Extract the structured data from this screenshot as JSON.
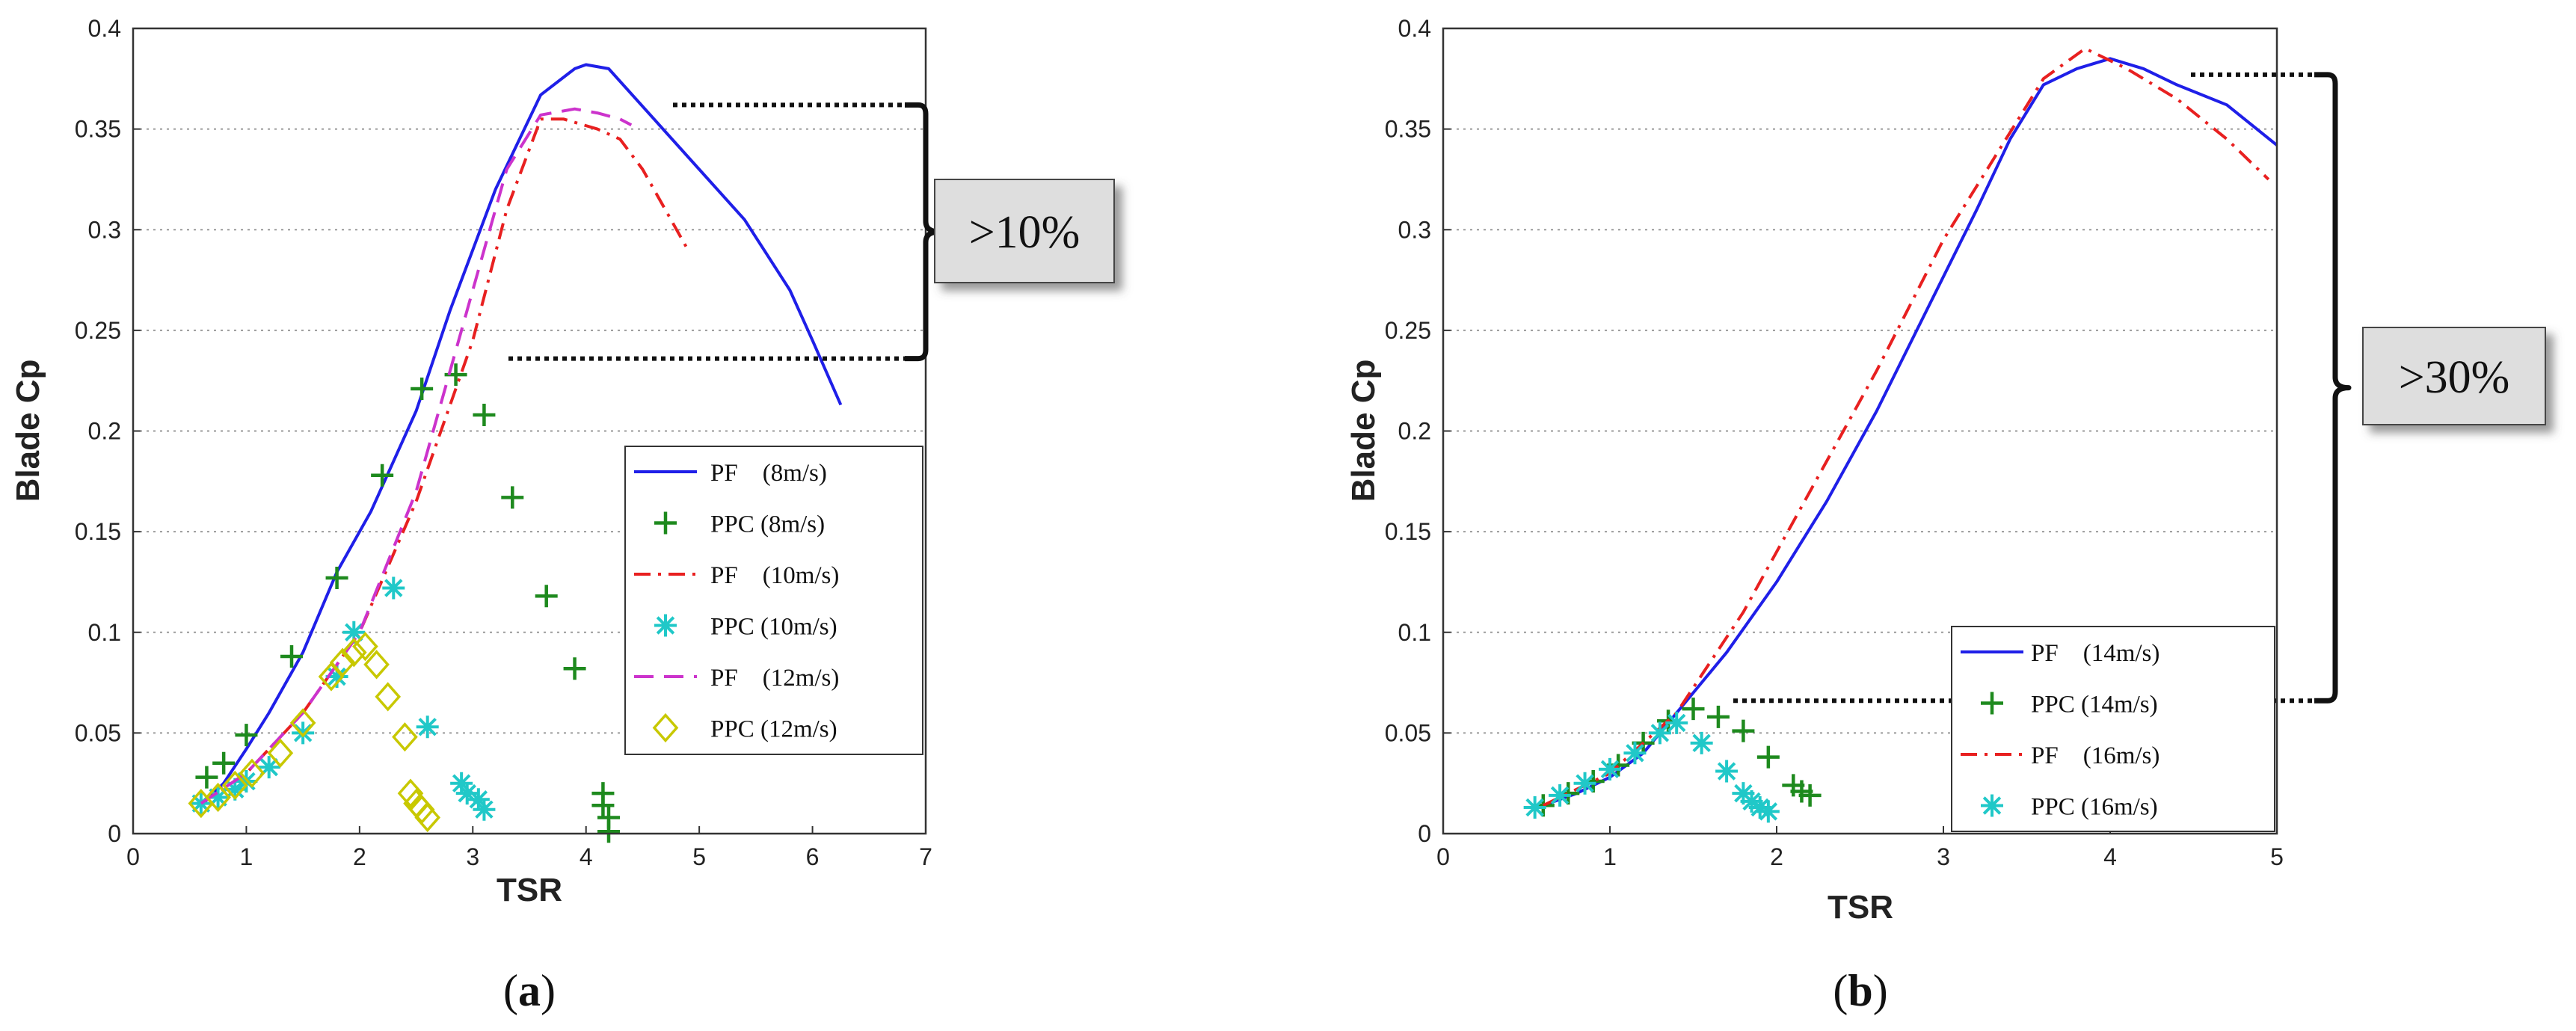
{
  "chart_data": [
    {
      "type": "line",
      "panel_label": "(a)",
      "xlabel": "TSR",
      "ylabel": "Blade Cp",
      "xlim": [
        0,
        7
      ],
      "ylim": [
        0,
        0.4
      ],
      "xticks": [
        "0",
        "1",
        "2",
        "3",
        "4",
        "5",
        "6",
        "7"
      ],
      "yticks": [
        "0",
        "0.05",
        "0.1",
        "0.15",
        "0.2",
        "0.25",
        "0.3",
        "0.35",
        "0.4"
      ],
      "grid": "horizontal dotted",
      "legend_position": "lower-right",
      "annotation": ">10%",
      "annotation_range": [
        0.236,
        0.362
      ],
      "series": [
        {
          "name": "PF    (8m/s)",
          "kind": "line",
          "color": "#1f1fe8",
          "dash": "solid",
          "x": [
            0.6,
            0.8,
            1.0,
            1.2,
            1.5,
            1.8,
            2.1,
            2.5,
            2.8,
            3.2,
            3.6,
            3.9,
            4.0,
            4.2,
            4.6,
            5.0,
            5.4,
            5.8,
            6.0,
            6.25
          ],
          "y": [
            0.014,
            0.025,
            0.042,
            0.06,
            0.09,
            0.13,
            0.16,
            0.21,
            0.26,
            0.32,
            0.367,
            0.38,
            0.382,
            0.38,
            0.355,
            0.33,
            0.305,
            0.27,
            0.245,
            0.213
          ]
        },
        {
          "name": "PPC (8m/s)",
          "kind": "plus",
          "color": "#1e8a1e",
          "x": [
            0.65,
            0.8,
            1.0,
            1.4,
            1.8,
            2.2,
            2.55,
            2.85,
            3.1,
            3.35,
            3.65,
            3.9,
            4.15,
            4.15,
            4.2,
            4.2
          ],
          "y": [
            0.028,
            0.035,
            0.049,
            0.088,
            0.127,
            0.178,
            0.221,
            0.228,
            0.208,
            0.167,
            0.118,
            0.082,
            0.02,
            0.014,
            0.008,
            0.001
          ]
        },
        {
          "name": "PF    (10m/s)",
          "kind": "line",
          "color": "#e82020",
          "dash": "dashdot",
          "x": [
            0.6,
            1.0,
            1.5,
            2.0,
            2.5,
            3.0,
            3.3,
            3.6,
            3.8,
            4.1,
            4.3,
            4.5,
            4.7,
            4.9
          ],
          "y": [
            0.015,
            0.03,
            0.06,
            0.1,
            0.165,
            0.245,
            0.31,
            0.355,
            0.355,
            0.35,
            0.345,
            0.33,
            0.31,
            0.29
          ]
        },
        {
          "name": "PPC (10m/s)",
          "kind": "asterisk",
          "color": "#20c8c8",
          "x": [
            0.6,
            0.75,
            0.9,
            1.0,
            1.2,
            1.5,
            1.8,
            1.95,
            2.3,
            2.6,
            2.9,
            2.95,
            3.05,
            3.1
          ],
          "y": [
            0.015,
            0.018,
            0.022,
            0.026,
            0.033,
            0.05,
            0.078,
            0.1,
            0.122,
            0.053,
            0.025,
            0.02,
            0.017,
            0.012
          ]
        },
        {
          "name": "PF    (12m/s)",
          "kind": "line",
          "color": "#cc33cc",
          "dash": "dashed",
          "x": [
            0.6,
            1.0,
            1.5,
            2.0,
            2.5,
            3.0,
            3.3,
            3.6,
            3.9,
            4.1,
            4.3,
            4.4
          ],
          "y": [
            0.015,
            0.03,
            0.06,
            0.1,
            0.17,
            0.27,
            0.33,
            0.357,
            0.36,
            0.358,
            0.355,
            0.352
          ]
        },
        {
          "name": "PPC (12m/s)",
          "kind": "diamond",
          "color": "#c8c800",
          "x": [
            0.6,
            0.75,
            0.9,
            1.05,
            1.3,
            1.5,
            1.75,
            1.85,
            1.95,
            2.05,
            2.15,
            2.25,
            2.4,
            2.45,
            2.5,
            2.55,
            2.6
          ],
          "y": [
            0.015,
            0.018,
            0.024,
            0.03,
            0.04,
            0.055,
            0.078,
            0.085,
            0.09,
            0.093,
            0.084,
            0.068,
            0.048,
            0.02,
            0.015,
            0.012,
            0.008
          ]
        }
      ]
    },
    {
      "type": "line",
      "panel_label": "(b)",
      "xlabel": "TSR",
      "ylabel": "Blade Cp",
      "xlim": [
        0,
        5
      ],
      "ylim": [
        0,
        0.4
      ],
      "xticks": [
        "0",
        "1",
        "2",
        "3",
        "4",
        "5"
      ],
      "yticks": [
        "0",
        "0.05",
        "0.1",
        "0.15",
        "0.2",
        "0.25",
        "0.3",
        "0.35",
        "0.4"
      ],
      "grid": "horizontal dotted",
      "legend_position": "lower-right",
      "annotation": ">30%",
      "annotation_range": [
        0.066,
        0.377
      ],
      "series": [
        {
          "name": "PF    (14m/s)",
          "kind": "line",
          "color": "#1f1fe8",
          "dash": "solid",
          "x": [
            0.6,
            0.8,
            1.0,
            1.2,
            1.4,
            1.7,
            2.0,
            2.3,
            2.6,
            2.9,
            3.2,
            3.4,
            3.6,
            3.8,
            4.0,
            4.2,
            4.4,
            4.7,
            5.0
          ],
          "y": [
            0.014,
            0.02,
            0.028,
            0.04,
            0.06,
            0.09,
            0.125,
            0.165,
            0.21,
            0.26,
            0.31,
            0.345,
            0.372,
            0.38,
            0.385,
            0.38,
            0.372,
            0.362,
            0.342
          ]
        },
        {
          "name": "PPC (14m/s)",
          "kind": "plus",
          "color": "#1e8a1e",
          "x": [
            0.6,
            0.75,
            0.9,
            1.05,
            1.2,
            1.35,
            1.5,
            1.65,
            1.8,
            1.95,
            2.1,
            2.15,
            2.2
          ],
          "y": [
            0.014,
            0.02,
            0.026,
            0.034,
            0.045,
            0.056,
            0.062,
            0.058,
            0.051,
            0.038,
            0.024,
            0.021,
            0.019
          ]
        },
        {
          "name": "PF    (16m/s)",
          "kind": "line",
          "color": "#e82020",
          "dash": "dashdot",
          "x": [
            0.6,
            1.0,
            1.4,
            1.8,
            2.2,
            2.6,
            3.0,
            3.3,
            3.6,
            3.85,
            4.1,
            4.4,
            4.7,
            4.95
          ],
          "y": [
            0.014,
            0.03,
            0.06,
            0.11,
            0.17,
            0.23,
            0.295,
            0.335,
            0.375,
            0.39,
            0.38,
            0.365,
            0.345,
            0.325
          ]
        },
        {
          "name": "PPC (16m/s)",
          "kind": "asterisk",
          "color": "#20c8c8",
          "x": [
            0.55,
            0.7,
            0.85,
            1.0,
            1.15,
            1.3,
            1.4,
            1.55,
            1.7,
            1.8,
            1.85,
            1.9,
            1.95
          ],
          "y": [
            0.013,
            0.019,
            0.025,
            0.032,
            0.04,
            0.05,
            0.055,
            0.045,
            0.031,
            0.02,
            0.016,
            0.013,
            0.011
          ]
        }
      ]
    }
  ]
}
